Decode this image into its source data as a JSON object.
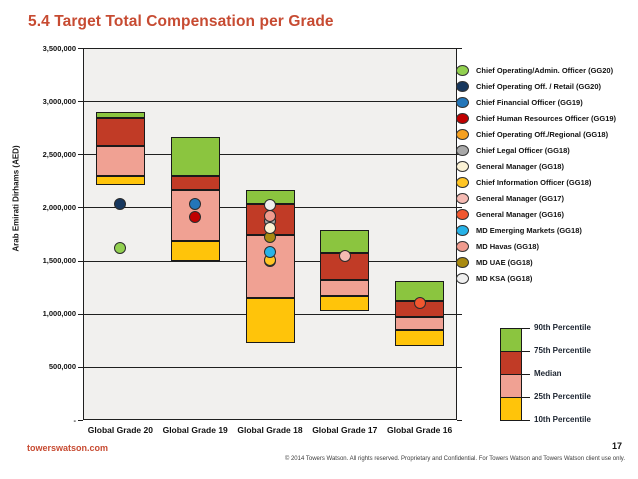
{
  "slide": {
    "title": "5.4 Target Total Compensation per Grade",
    "footer": {
      "site": "towerswatson.com",
      "page_number": "17",
      "copyright": "© 2014 Towers Watson. All rights reserved. Proprietary and Confidential. For Towers Watson and Towers Watson client use only."
    }
  },
  "colors": {
    "title_red": "#C74B32",
    "plot_bg": "#F1F0EE",
    "grid": "#1F1F1F",
    "band_green": "#8BC53F",
    "band_darkred": "#C13B26",
    "band_salmon": "#F0A193",
    "band_yellow": "#FFC40A"
  },
  "chart_data": {
    "type": "bar",
    "subtype": "floating_percentile_range_bars_with_position_markers",
    "title": "5.4 Target Total Compensation per Grade",
    "xlabel": "",
    "ylabel": "Arab Emirati Dirhams (AED)",
    "ylim": [
      0,
      3500000
    ],
    "ytick_interval": 500000,
    "ytick_labels_top_to_bottom": [
      "3,500,000",
      "3,000,000",
      "2,500,000",
      "2,000,000",
      "1,500,000",
      "1,000,000",
      "500,000",
      "-"
    ],
    "grid": true,
    "legend_position": "right",
    "percentile_key_position": "bottom-right",
    "categories": [
      "Global Grade 20",
      "Global Grade 19",
      "Global Grade 18",
      "Global Grade 17",
      "Global Grade 16"
    ],
    "percentile_bands_bottom_to_top": [
      "10th-25th yellow",
      "25th-Median salmon",
      "Median-75th dark red",
      "75th-90th green"
    ],
    "series": [
      {
        "category": "Global Grade 20",
        "p10": 2210000,
        "p25": 2300000,
        "median": 2580000,
        "p75": 2840000,
        "p90": 2900000
      },
      {
        "category": "Global Grade 19",
        "p10": 1500000,
        "p25": 1680000,
        "median": 2160000,
        "p75": 2300000,
        "p90": 2660000
      },
      {
        "category": "Global Grade 18",
        "p10": 720000,
        "p25": 1150000,
        "median": 1740000,
        "p75": 2030000,
        "p90": 2160000
      },
      {
        "category": "Global Grade 17",
        "p10": 1030000,
        "p25": 1170000,
        "median": 1320000,
        "p75": 1570000,
        "p90": 1790000
      },
      {
        "category": "Global Grade 16",
        "p10": 700000,
        "p25": 850000,
        "median": 970000,
        "p75": 1120000,
        "p90": 1310000
      }
    ],
    "markers": [
      {
        "label": "Chief Operating Off./Regional (GG18)",
        "category": "Global Grade 18",
        "value": 1500000,
        "color": "#F6A01F"
      },
      {
        "label": "Chief Information Officer (GG18)",
        "category": "Global Grade 18",
        "value": 1510000,
        "color": "#FFC524"
      },
      {
        "label": "MD Emerging Markets (GG18)",
        "category": "Global Grade 18",
        "value": 1580000,
        "color": "#27B2E7"
      },
      {
        "label": "MD UAE (GG18)",
        "category": "Global Grade 18",
        "value": 1720000,
        "color": "#A98A10"
      },
      {
        "label": "Chief Legal Officer (GG18)",
        "category": "Global Grade 18",
        "value": 1870000,
        "color": "#A8A8A8"
      },
      {
        "label": "General Manager (GG18)",
        "category": "Global Grade 18",
        "value": 1810000,
        "color": "#FBF2D5"
      },
      {
        "label": "MD Havas (GG18)",
        "category": "Global Grade 18",
        "value": 1920000,
        "color": "#F09B8E"
      },
      {
        "label": "MD KSA (GG18)",
        "category": "Global Grade 18",
        "value": 2020000,
        "color": "#EFEFEF"
      },
      {
        "label": "Chief Operating/Admin. Officer (GG20)",
        "category": "Global Grade 20",
        "value": 1620000,
        "color": "#92D050"
      },
      {
        "label": "Chief Operating Off. / Retail (GG20)",
        "category": "Global Grade 20",
        "value": 2030000,
        "color": "#17375E"
      },
      {
        "label": "Chief Financial Officer (GG19)",
        "category": "Global Grade 19",
        "value": 2030000,
        "color": "#2376B9"
      },
      {
        "label": "Chief Human Resources Officer (GG19)",
        "category": "Global Grade 19",
        "value": 1910000,
        "color": "#C00000"
      },
      {
        "label": "General Manager (GG17)",
        "category": "Global Grade 17",
        "value": 1540000,
        "color": "#F4BAB3"
      },
      {
        "label": "General Manager (GG16)",
        "category": "Global Grade 16",
        "value": 1100000,
        "color": "#F1572F"
      }
    ]
  },
  "legend": {
    "items": [
      {
        "label": "Chief Operating/Admin. Officer (GG20)",
        "color": "#92D050"
      },
      {
        "label": "Chief Operating Off. / Retail (GG20)",
        "color": "#17375E"
      },
      {
        "label": "Chief Financial Officer (GG19)",
        "color": "#2376B9"
      },
      {
        "label": "Chief Human Resources Officer (GG19)",
        "color": "#C00000"
      },
      {
        "label": "Chief Operating Off./Regional (GG18)",
        "color": "#F6A01F"
      },
      {
        "label": "Chief Legal Officer (GG18)",
        "color": "#A8A8A8"
      },
      {
        "label": "General Manager (GG18)",
        "color": "#FBF2D5"
      },
      {
        "label": "Chief Information Officer (GG18)",
        "color": "#FFC524"
      },
      {
        "label": "General Manager (GG17)",
        "color": "#F4BAB3"
      },
      {
        "label": "General Manager (GG16)",
        "color": "#F1572F"
      },
      {
        "label": "MD Emerging Markets (GG18)",
        "color": "#27B2E7"
      },
      {
        "label": "MD Havas (GG18)",
        "color": "#F09B8E"
      },
      {
        "label": "MD UAE (GG18)",
        "color": "#A98A10"
      },
      {
        "label": "MD KSA (GG18)",
        "color": "#EFEFEF"
      }
    ]
  },
  "percentile_key": {
    "labels_top_to_bottom": [
      "90th Percentile",
      "75th Percentile",
      "Median",
      "25th Percentile",
      "10th Percentile"
    ],
    "band_colors_top_to_bottom": [
      "#8BC53F",
      "#C13B26",
      "#F0A193",
      "#FFC40A"
    ]
  }
}
